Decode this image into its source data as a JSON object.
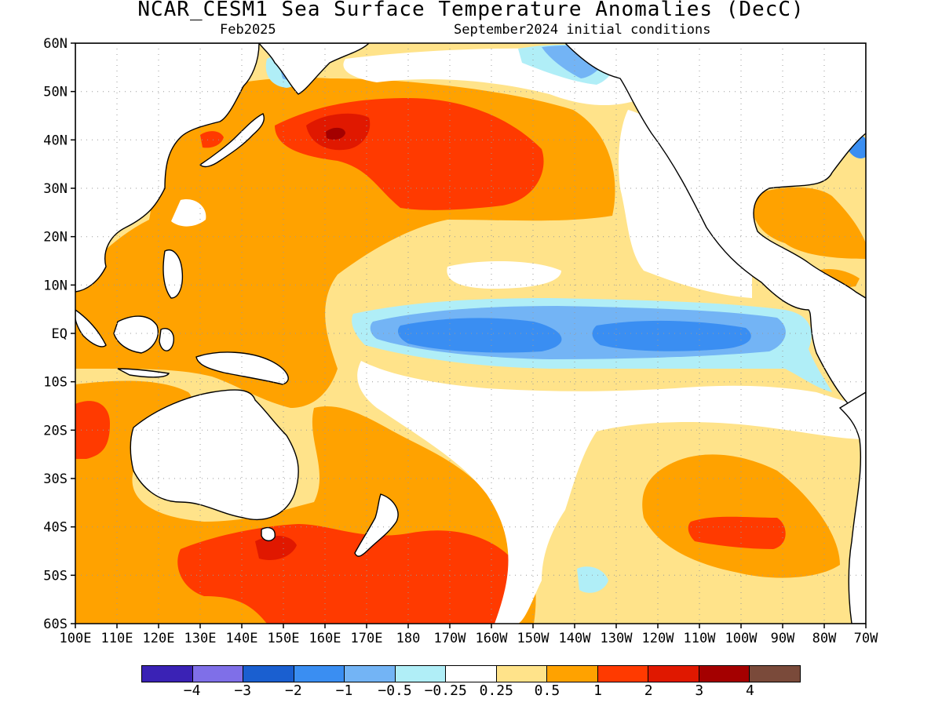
{
  "title": "NCAR_CESM1 Sea Surface Temperature Anomalies (DecC)",
  "subtitle_left": "Feb2025",
  "subtitle_right": "September2024 initial conditions",
  "lat_labels": [
    "60N",
    "50N",
    "40N",
    "30N",
    "20N",
    "10N",
    "EQ",
    "10S",
    "20S",
    "30S",
    "40S",
    "50S",
    "60S"
  ],
  "lon_labels": [
    "100E",
    "110E",
    "120E",
    "130E",
    "140E",
    "150E",
    "160E",
    "170E",
    "180",
    "170W",
    "160W",
    "150W",
    "140W",
    "130W",
    "120W",
    "110W",
    "100W",
    "90W",
    "80W",
    "70W"
  ],
  "colorbar": {
    "colors": [
      "#3a22b5",
      "#7f6fe8",
      "#1a5fd0",
      "#3a8ef2",
      "#73b4f5",
      "#b0eef7",
      "#ffffff",
      "#ffe38a",
      "#ffa200",
      "#ff3a00",
      "#e01800",
      "#a40000",
      "#7a4a3a"
    ],
    "labels": [
      "−4",
      "−3",
      "−2",
      "−1",
      "−0.5",
      "−0.25",
      "0.25",
      "0.5",
      "1",
      "2",
      "3",
      "4"
    ]
  },
  "regions": {
    "land": "#ffffff",
    "coast": "#000000",
    "grid_dots": "#9a9a9a"
  }
}
